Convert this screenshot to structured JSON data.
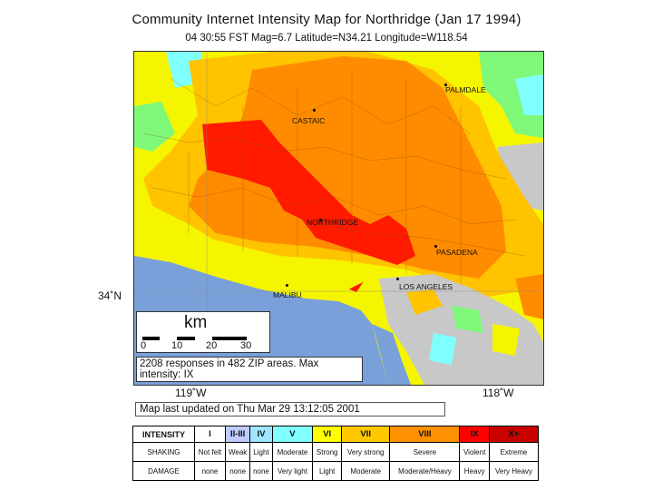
{
  "header": {
    "title": "Community Internet Intensity Map for Northridge (Jan 17 1994)",
    "subtitle": "04 30:55 FST Mag=6.7 Latitude=N34.21 Longitude=W118.54"
  },
  "map": {
    "lat_label": "34˚N",
    "lon_labels": [
      "119˚W",
      "118˚W"
    ],
    "cities": [
      "PALMDALE",
      "CASTAIC",
      "NORTHRIDGE",
      "PASADENA",
      "MALIBU",
      "LOS ANGELES"
    ],
    "scale": {
      "unit": "km",
      "ticks": [
        "0",
        "10",
        "20",
        "30"
      ]
    },
    "responses_text": "2208 responses in 482 ZIP areas. Max intensity: IX",
    "colors": {
      "ocean": "#7aa0da",
      "no_data": "#c8c8c8",
      "weak": "#c8c8ff",
      "light": "#80ffff",
      "moderate": "#7ff87a",
      "strong": "#f5f500",
      "very_strong": "#ffc300",
      "severe": "#ff8c00",
      "violent": "#ff0000"
    }
  },
  "updated_text": "Map last updated on Thu Mar 29 13:12:05 2001",
  "legend": {
    "row_labels": [
      "INTENSITY",
      "SHAKING",
      "DAMAGE"
    ],
    "columns": [
      {
        "intensity": "I",
        "shaking": "Not felt",
        "damage": "none",
        "color": "#ffffff"
      },
      {
        "intensity": "II-III",
        "shaking": "Weak",
        "damage": "none",
        "color": "#bfccff"
      },
      {
        "intensity": "IV",
        "shaking": "Light",
        "damage": "none",
        "color": "#a0e6ff"
      },
      {
        "intensity": "V",
        "shaking": "Moderate",
        "damage": "Very light",
        "color": "#80ffff"
      },
      {
        "intensity": "VI",
        "shaking": "Strong",
        "damage": "Light",
        "color": "#ffff00"
      },
      {
        "intensity": "VII",
        "shaking": "Very strong",
        "damage": "Moderate",
        "color": "#ffc800"
      },
      {
        "intensity": "VIII",
        "shaking": "Severe",
        "damage": "Moderate/Heavy",
        "color": "#ff9100"
      },
      {
        "intensity": "IX",
        "shaking": "Violent",
        "damage": "Heavy",
        "color": "#ff0000"
      },
      {
        "intensity": "X+",
        "shaking": "Extreme",
        "damage": "Very Heavy",
        "color": "#c80000"
      }
    ]
  }
}
